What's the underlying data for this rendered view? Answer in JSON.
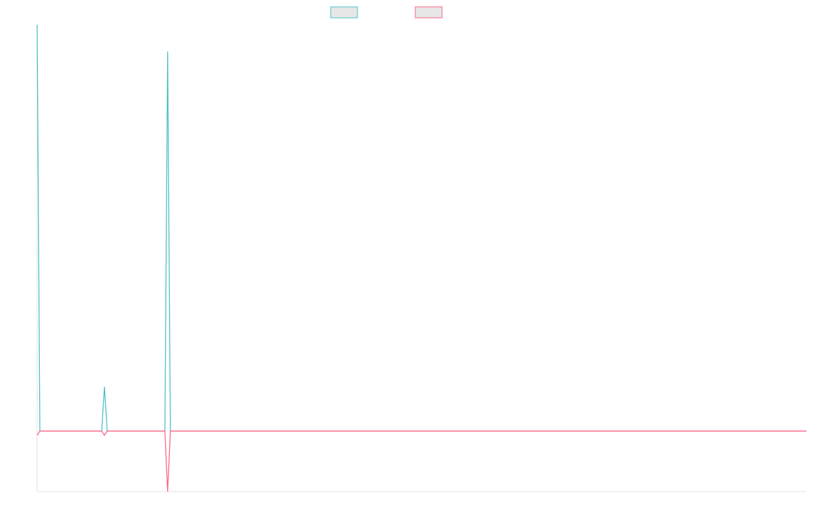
{
  "chart_data": {
    "type": "line",
    "x": [
      0,
      1,
      23.5,
      24.5,
      25.5,
      46.5,
      47.5,
      48.5,
      280
    ],
    "xlim": [
      0,
      280
    ],
    "ylim": [
      -1,
      6.7
    ],
    "series": [
      {
        "color": "#4bc0c0",
        "values": [
          6.7,
          0,
          0,
          0.73,
          0,
          0,
          6.26,
          0,
          0
        ]
      },
      {
        "color": "#ff6384",
        "values": [
          -0.07,
          0,
          0,
          -0.07,
          0,
          0,
          -1,
          0,
          0
        ]
      }
    ]
  }
}
